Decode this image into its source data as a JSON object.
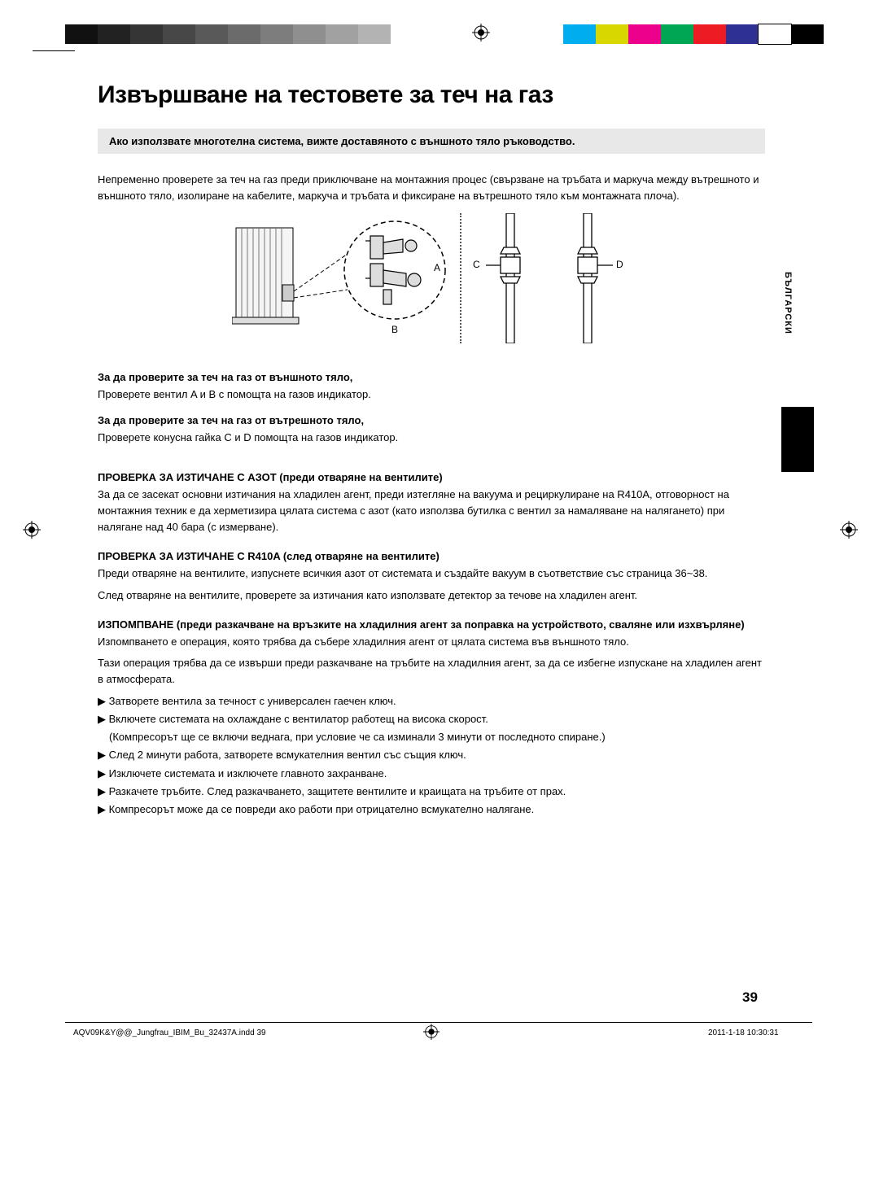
{
  "print_marks": {
    "gray_steps": [
      "#111111",
      "#222222",
      "#353535",
      "#474747",
      "#595959",
      "#6b6b6b",
      "#7d7d7d",
      "#8f8f8f",
      "#a1a1a1",
      "#b3b3b3"
    ],
    "color_steps": [
      "#00aeef",
      "#d8d800",
      "#ec008c",
      "#00a651",
      "#ed1c24",
      "#2e3192",
      "#ffffff",
      "#000000"
    ]
  },
  "page": {
    "title": "Извършване на тестовете за теч на газ",
    "note": "Ако използвате многотелна система, вижте доставяното с външното тяло ръководство.",
    "intro": "Непременно проверете за теч на газ преди приключване на монтажния процес (свързване на тръбата и маркуча между вътрешното и външното тяло, изолиране на кабелите, маркуча и тръбата и фиксиране на вътрешното тяло към монтажната плоча).",
    "diagram_labels": {
      "a": "A",
      "b": "B",
      "c": "C",
      "d": "D"
    },
    "sec1_h": "За да проверите за теч на газ от външното тяло,",
    "sec1_p": "Проверете вентил A и B с помощта на газов индикатор.",
    "sec2_h": "За да проверите за теч на газ от вътрешното тяло,",
    "sec2_p": "Проверете конусна гайка C и D помощта на газов индикатор.",
    "block1_h": "ПРОВЕРКА ЗА ИЗТИЧАНЕ С АЗОТ (преди отваряне на вентилите)",
    "block1_p": "За да се засекат основни изтичания на хладилен агент, преди изтегляне на вакуума и рециркулиране на R410A, отговорност на монтажния техник е да херметизира цялата система с азот (като използва бутилка с вентил за намаляване на налягането) при налягане над 40 бара (с измерване).",
    "block2_h": "ПРОВЕРКА ЗА ИЗТИЧАНЕ С R410A (след отваряне на вентилите)",
    "block2_p1": "Преди отваряне на вентилите, изпуснете всичкия азот от системата и създайте вакуум в съответствие със страница 36~38.",
    "block2_p2": "След отваряне на вентилите, проверете за изтичания като използвате детектор за течове на хладилен агент.",
    "block3_h": "ИЗПОМПВАНЕ (преди разкачване на връзките на хладилния агент за поправка на устройството, сваляне или изхвърляне)",
    "block3_p1": "Изпомпването е операция, която трябва да събере хладилния агент от цялата система във външното тяло.",
    "block3_p2": "Тази операция трябва да се извърши преди разкачване на тръбите на хладилния агент, за да се избегне изпускане на хладилен агент в атмосферата.",
    "bullets": [
      "Затворете вентила за течност с универсален гаечен ключ.",
      "Включете системата на охлаждане с вентилатор работещ на висока скорост.\n(Компресорът ще се включи веднага, при условие че са изминали 3 минути от последното спиране.)",
      "След 2 минути работа, затворете всмукателния вентил със същия ключ.",
      "Изключете системата и изключете главното захранване.",
      "Разкачете тръбите. След разкачването, защитете вентилите и краищата на тръбите от прах.",
      "Компресорът може да се повреди ако работи при отрицателно всмукателно налягане."
    ]
  },
  "side": {
    "lang": "БЪЛГАРСКИ"
  },
  "footer": {
    "file": "AQV09K&Y@@_Jungfrau_IBIM_Bu_32437A.indd   39",
    "date": "2011-1-18   10:30:31",
    "page": "39"
  }
}
